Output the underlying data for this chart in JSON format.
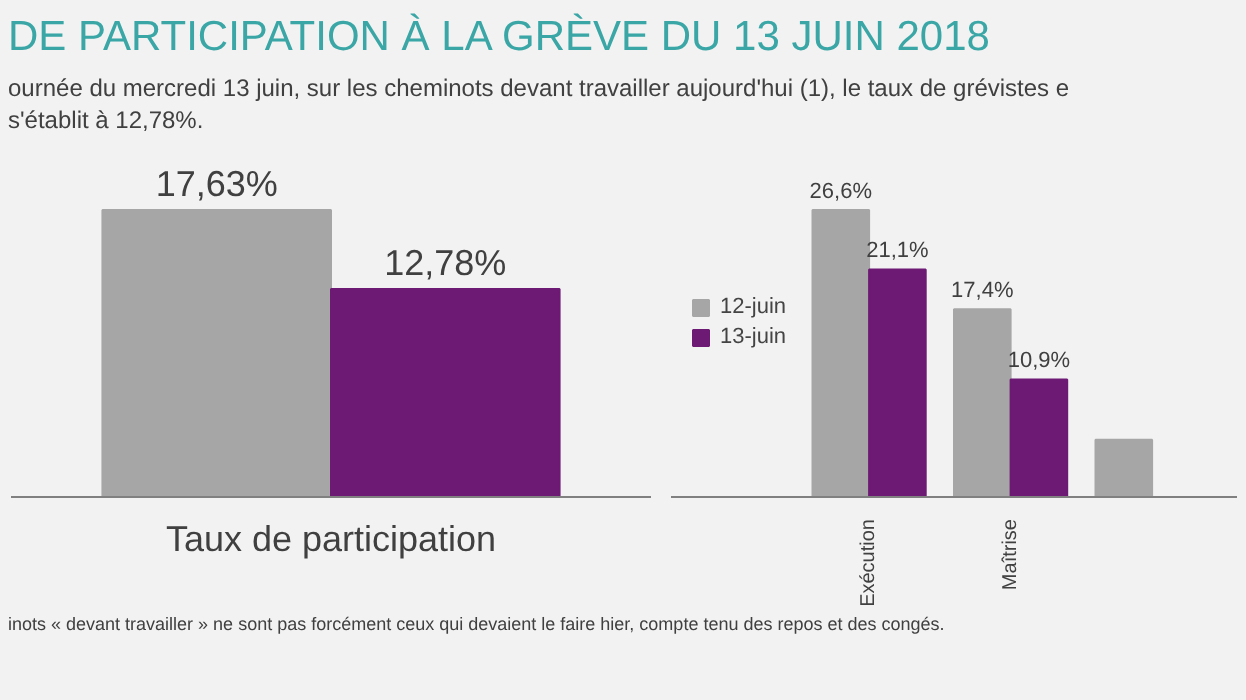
{
  "chart_data": [
    {
      "type": "bar",
      "title": "DE PARTICIPATION À LA GRÈVE DU 13 JUIN 2018",
      "subtitle": "ournée du mercredi 13 juin, sur les cheminots devant travailler aujourd'hui (1), le taux de grévistes e\ns'établit à 12,78%.",
      "xlabel": "Taux de participation",
      "categories": [
        null,
        null
      ],
      "values": [
        17.63,
        12.78
      ],
      "colors": [
        "#a6a6a6",
        "#6d1a74"
      ],
      "value_labels": [
        "17,63%",
        "12,78%"
      ],
      "legend": false
    },
    {
      "type": "bar",
      "categories": [
        "Exécution",
        "Maîtrise",
        null
      ],
      "series": [
        {
          "name": "12-juin",
          "color": "#a6a6a6",
          "values": [
            26.6,
            17.4,
            5.3
          ],
          "value_labels": [
            "26,6%",
            "17,4%",
            null
          ]
        },
        {
          "name": "13-juin",
          "color": "#6d1a74",
          "values": [
            21.1,
            10.9,
            null
          ],
          "value_labels": [
            "21,1%",
            "10,9%",
            null
          ]
        }
      ],
      "legend": "left",
      "annotations": [
        "inots « devant travailler » ne sont pas forcément ceux qui devaient le faire hier, compte tenu des repos et des congés."
      ]
    }
  ]
}
